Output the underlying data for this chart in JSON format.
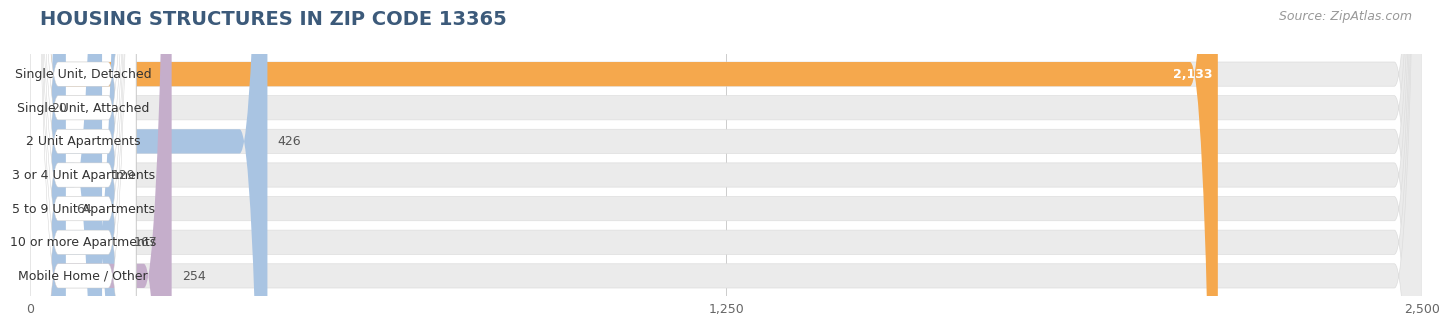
{
  "title": "HOUSING STRUCTURES IN ZIP CODE 13365",
  "source": "Source: ZipAtlas.com",
  "categories": [
    "Single Unit, Detached",
    "Single Unit, Attached",
    "2 Unit Apartments",
    "3 or 4 Unit Apartments",
    "5 to 9 Unit Apartments",
    "10 or more Apartments",
    "Mobile Home / Other"
  ],
  "values": [
    2133,
    20,
    426,
    129,
    64,
    167,
    254
  ],
  "bar_colors": [
    "#F5A84D",
    "#F2A0A0",
    "#A9C4E2",
    "#A9C4E2",
    "#A9C4E2",
    "#A9C4E2",
    "#C5AECB"
  ],
  "bar_bg_color": "#EBEBEB",
  "xlim": [
    0,
    2500
  ],
  "xticks": [
    0,
    1250,
    2500
  ],
  "xtick_labels": [
    "0",
    "1,250",
    "2,500"
  ],
  "background_color": "#FFFFFF",
  "title_fontsize": 14,
  "source_fontsize": 9,
  "label_fontsize": 9,
  "value_fontsize": 9,
  "label_bg_color": "#FFFFFF"
}
